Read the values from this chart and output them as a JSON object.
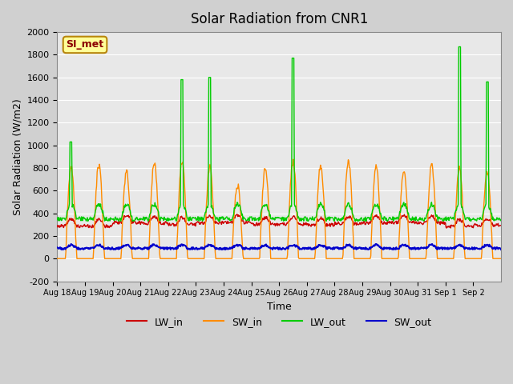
{
  "title": "Solar Radiation from CNR1",
  "xlabel": "Time",
  "ylabel": "Solar Radiation (W/m2)",
  "ylim": [
    -200,
    2000
  ],
  "annotation_text": "SI_met",
  "annotation_color": "#8B0000",
  "annotation_bg": "#FFFF99",
  "annotation_border": "#B8860B",
  "line_colors": {
    "LW_in": "#CC0000",
    "SW_in": "#FF8C00",
    "LW_out": "#00CC00",
    "SW_out": "#0000CC"
  },
  "yticks": [
    -200,
    0,
    200,
    400,
    600,
    800,
    1000,
    1200,
    1400,
    1600,
    1800,
    2000
  ],
  "xtick_labels": [
    "Aug 18",
    "Aug 19",
    "Aug 20",
    "Aug 21",
    "Aug 22",
    "Aug 23",
    "Aug 24",
    "Aug 25",
    "Aug 26",
    "Aug 27",
    "Aug 28",
    "Aug 29",
    "Aug 30",
    "Aug 31",
    "Sep 1",
    "Sep 2"
  ],
  "n_days": 16,
  "n_pts_per_day": 48
}
